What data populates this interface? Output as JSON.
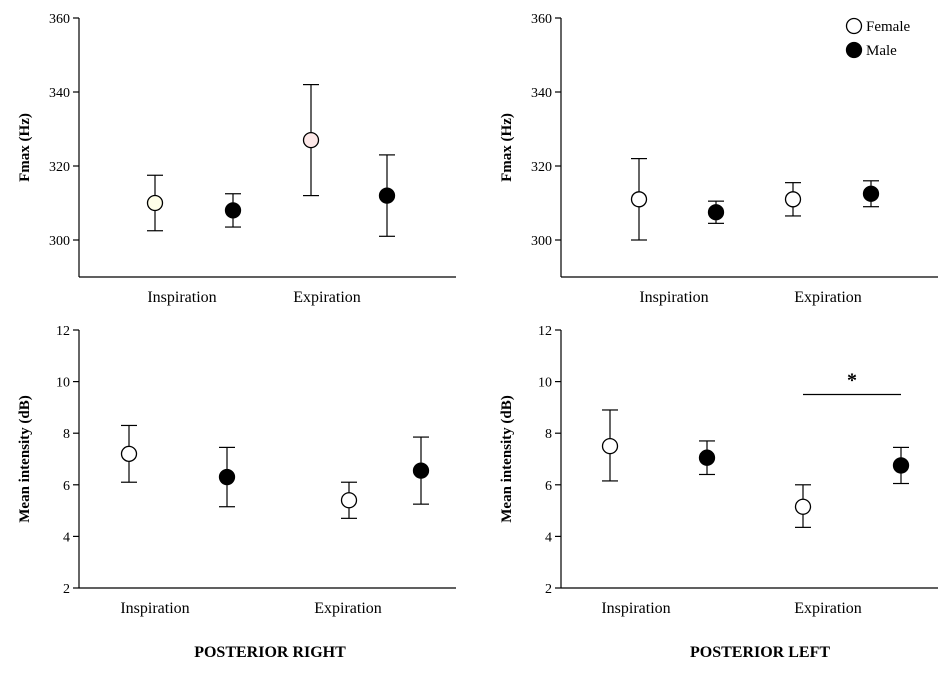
{
  "chart_data": [
    {
      "id": "fmax-right",
      "type": "scatter",
      "group": "POSTERIOR RIGHT",
      "ylabel": "Fmax (Hz)",
      "yticks": [
        300,
        320,
        340,
        360
      ],
      "ylim": [
        290,
        360
      ],
      "categories": [
        "Inspiration",
        "Expiration"
      ],
      "points": [
        {
          "category": "Inspiration",
          "series": "Female",
          "y": 310,
          "err_low": 302.5,
          "err_high": 317.5,
          "fill": "#fefee8"
        },
        {
          "category": "Inspiration",
          "series": "Male",
          "y": 308,
          "err_low": 303.5,
          "err_high": 312.5,
          "fill": "#000000"
        },
        {
          "category": "Expiration",
          "series": "Female",
          "y": 327,
          "err_low": 312,
          "err_high": 342,
          "fill": "#fde8e8"
        },
        {
          "category": "Expiration",
          "series": "Male",
          "y": 312,
          "err_low": 301,
          "err_high": 323,
          "fill": "#000000"
        }
      ]
    },
    {
      "id": "fmax-left",
      "type": "scatter",
      "group": "POSTERIOR LEFT",
      "ylabel": "Fmax (Hz)",
      "yticks": [
        300,
        320,
        340,
        360
      ],
      "ylim": [
        290,
        360
      ],
      "categories": [
        "Inspiration",
        "Expiration"
      ],
      "points": [
        {
          "category": "Inspiration",
          "series": "Female",
          "y": 311,
          "err_low": 300,
          "err_high": 322,
          "fill": "#ffffff"
        },
        {
          "category": "Inspiration",
          "series": "Male",
          "y": 307.5,
          "err_low": 304.5,
          "err_high": 310.5,
          "fill": "#000000"
        },
        {
          "category": "Expiration",
          "series": "Female",
          "y": 311,
          "err_low": 306.5,
          "err_high": 315.5,
          "fill": "#ffffff"
        },
        {
          "category": "Expiration",
          "series": "Male",
          "y": 312.5,
          "err_low": 309,
          "err_high": 316,
          "fill": "#000000"
        }
      ],
      "legend": {
        "placement": "top-right",
        "entries": [
          {
            "label": "Female",
            "fill": "#ffffff"
          },
          {
            "label": "Male",
            "fill": "#000000"
          }
        ]
      }
    },
    {
      "id": "intensity-right",
      "type": "scatter",
      "group": "POSTERIOR RIGHT",
      "ylabel": "Mean intensity (dB)",
      "yticks": [
        2,
        4,
        6,
        8,
        10,
        12
      ],
      "ylim": [
        2,
        12
      ],
      "categories": [
        "Inspiration",
        "Expiration"
      ],
      "points": [
        {
          "category": "Inspiration",
          "series": "Female",
          "y": 7.2,
          "err_low": 6.1,
          "err_high": 8.3,
          "fill": "#ffffff"
        },
        {
          "category": "Inspiration",
          "series": "Male",
          "y": 6.3,
          "err_low": 5.15,
          "err_high": 7.45,
          "fill": "#000000"
        },
        {
          "category": "Expiration",
          "series": "Female",
          "y": 5.4,
          "err_low": 4.7,
          "err_high": 6.1,
          "fill": "#ffffff"
        },
        {
          "category": "Expiration",
          "series": "Male",
          "y": 6.55,
          "err_low": 5.25,
          "err_high": 7.85,
          "fill": "#000000"
        }
      ]
    },
    {
      "id": "intensity-left",
      "type": "scatter",
      "group": "POSTERIOR LEFT",
      "ylabel": "Mean intensity (dB)",
      "yticks": [
        2,
        4,
        6,
        8,
        10,
        12
      ],
      "ylim": [
        2,
        12
      ],
      "categories": [
        "Inspiration",
        "Expiration"
      ],
      "points": [
        {
          "category": "Inspiration",
          "series": "Female",
          "y": 7.5,
          "err_low": 6.15,
          "err_high": 8.9,
          "fill": "#ffffff"
        },
        {
          "category": "Inspiration",
          "series": "Male",
          "y": 7.05,
          "err_low": 6.4,
          "err_high": 7.7,
          "fill": "#000000"
        },
        {
          "category": "Expiration",
          "series": "Female",
          "y": 5.15,
          "err_low": 4.35,
          "err_high": 6.0,
          "fill": "#ffffff"
        },
        {
          "category": "Expiration",
          "series": "Male",
          "y": 6.75,
          "err_low": 6.05,
          "err_high": 7.45,
          "fill": "#000000"
        }
      ],
      "significance": {
        "label": "*",
        "between": [
          "Expiration Female",
          "Expiration Male"
        ],
        "y": 9.5
      }
    }
  ],
  "group_titles": {
    "right": "POSTERIOR RIGHT",
    "left": "POSTERIOR LEFT"
  }
}
